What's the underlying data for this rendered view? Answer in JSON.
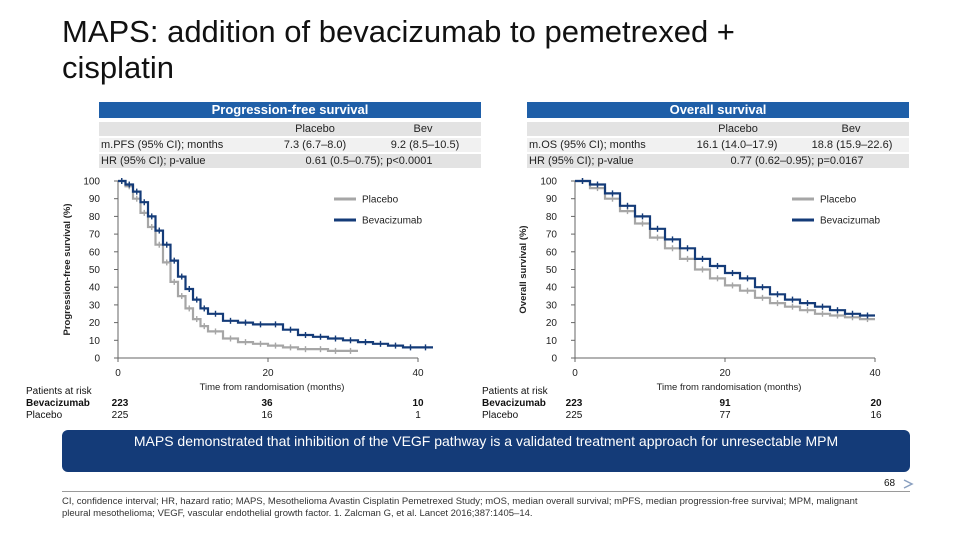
{
  "slide": {
    "title": "MAPS: addition of bevacizumab to pemetrexed + cisplatin",
    "page_number": "68",
    "banner": "MAPS demonstrated that inhibition of the VEGF pathway is a validated treatment approach for unresectable MPM",
    "footnote": "CI, confidence interval; HR, hazard ratio; MAPS, Mesothelioma Avastin Cisplatin Pemetrexed Study; mOS, median overall survival; mPFS, median progression-free survival; MPM, malignant pleural mesothelioma; VEGF, vascular endothelial growth factor. 1. Zalcman G, et al. Lancet 2016;387:1405–14.",
    "colors": {
      "bev": "#143b78",
      "placebo": "#a6a6a6",
      "header": "#1f5fa8"
    }
  },
  "pfs": {
    "header": "Progression-free survival",
    "row1": {
      "label": "m.PFS (95% CI); months",
      "placebo_head": "Placebo",
      "bev_head": "Bev",
      "placebo_val": "7.3 (6.7–8.0)",
      "bev_val": "9.2 (8.5–10.5)"
    },
    "row2": {
      "label": "HR (95% CI); p-value",
      "hr": "0.61 (0.5–0.75); p<0.0001"
    },
    "risk": {
      "title": "Patients at risk",
      "bev_label": "Bevacizumab",
      "placebo_label": "Placebo",
      "bev_counts": [
        "223",
        "36",
        "10"
      ],
      "placebo_counts": [
        "225",
        "16",
        "1"
      ]
    }
  },
  "os": {
    "header": "Overall survival",
    "row1": {
      "label": "m.OS (95% CI); months",
      "placebo_head": "Placebo",
      "bev_head": "Bev",
      "placebo_val": "16.1 (14.0–17.9)",
      "bev_val": "18.8 (15.9–22.6)"
    },
    "row2": {
      "label": "HR (95% CI); p-value",
      "hr": "0.77 (0.62–0.95); p=0.0167"
    },
    "risk": {
      "title": "Patients at risk",
      "bev_label": "Bevacizumab",
      "placebo_label": "Placebo",
      "bev_counts": [
        "223",
        "91",
        "20"
      ],
      "placebo_counts": [
        "225",
        "77",
        "16"
      ]
    }
  },
  "chart_data": [
    {
      "type": "line",
      "title": "Progression-free survival",
      "xlabel": "Time from randomisation (months)",
      "ylabel": "Progression-free survival (%)",
      "xlim": [
        0,
        40
      ],
      "ylim": [
        0,
        100
      ],
      "xticks": [
        0,
        20,
        40
      ],
      "yticks": [
        0,
        10,
        20,
        30,
        40,
        50,
        60,
        70,
        80,
        90,
        100
      ],
      "legend": "top-right",
      "series": [
        {
          "name": "Placebo",
          "color": "#a6a6a6",
          "x": [
            0,
            1,
            2,
            3,
            4,
            5,
            6,
            7,
            8,
            9,
            10,
            11,
            12,
            14,
            16,
            18,
            20,
            22,
            24,
            26,
            28,
            30,
            32
          ],
          "y": [
            100,
            97,
            90,
            82,
            74,
            64,
            54,
            43,
            35,
            28,
            22,
            18,
            15,
            11,
            9,
            8,
            7,
            6,
            5,
            5,
            4,
            4,
            4
          ]
        },
        {
          "name": "Bevacizumab",
          "color": "#143b78",
          "x": [
            0,
            1,
            2,
            3,
            4,
            5,
            6,
            7,
            8,
            9,
            10,
            11,
            12,
            14,
            16,
            18,
            20,
            22,
            24,
            26,
            28,
            30,
            32,
            34,
            36,
            38,
            40,
            42
          ],
          "y": [
            100,
            98,
            94,
            88,
            80,
            72,
            64,
            55,
            46,
            39,
            33,
            28,
            25,
            21,
            20,
            19,
            19,
            16,
            13,
            12,
            11,
            10,
            9,
            8,
            7,
            6,
            6,
            6
          ]
        }
      ]
    },
    {
      "type": "line",
      "title": "Overall survival",
      "xlabel": "Time from randomisation (months)",
      "ylabel": "Overall survival (%)",
      "xlim": [
        0,
        40
      ],
      "ylim": [
        0,
        100
      ],
      "xticks": [
        0,
        20,
        40
      ],
      "yticks": [
        0,
        10,
        20,
        30,
        40,
        50,
        60,
        70,
        80,
        90,
        100
      ],
      "legend": "top-right",
      "series": [
        {
          "name": "Placebo",
          "color": "#a6a6a6",
          "x": [
            0,
            2,
            4,
            6,
            8,
            10,
            12,
            14,
            16,
            18,
            20,
            22,
            24,
            26,
            28,
            30,
            32,
            34,
            36,
            38,
            40
          ],
          "y": [
            100,
            96,
            90,
            83,
            76,
            68,
            62,
            56,
            50,
            45,
            41,
            38,
            34,
            31,
            29,
            27,
            25,
            24,
            23,
            22,
            22
          ]
        },
        {
          "name": "Bevacizumab",
          "color": "#143b78",
          "x": [
            0,
            2,
            4,
            6,
            8,
            10,
            12,
            14,
            16,
            18,
            20,
            22,
            24,
            26,
            28,
            30,
            32,
            34,
            36,
            38,
            40
          ],
          "y": [
            100,
            98,
            93,
            86,
            80,
            73,
            67,
            62,
            56,
            52,
            48,
            45,
            40,
            36,
            33,
            31,
            29,
            27,
            25,
            24,
            24
          ]
        }
      ]
    }
  ]
}
